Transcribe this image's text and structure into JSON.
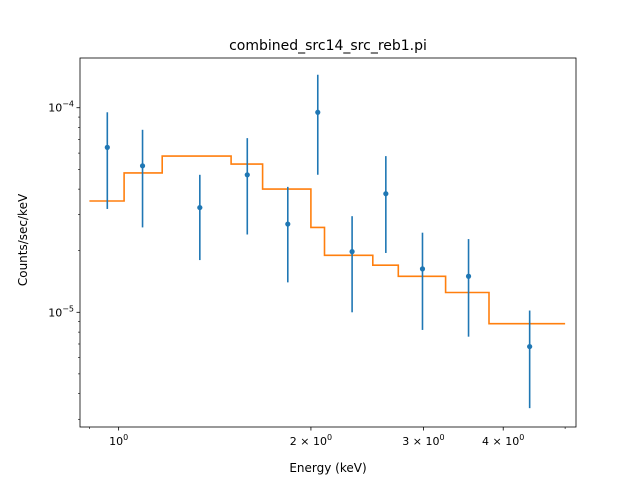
{
  "chart_data": {
    "type": "scatter",
    "title": "combined_src14_src_reb1.pi",
    "xlabel": "Energy (keV)",
    "ylabel": "Counts/sec/keV",
    "xscale": "log",
    "yscale": "log",
    "xlim": [
      0.87,
      5.2
    ],
    "ylim": [
      2.75e-06,
      0.000175
    ],
    "x_tick_labels": [
      {
        "value": 1,
        "base": "10",
        "exp": "0"
      },
      {
        "value": 2,
        "coeff": "2",
        "base": "10",
        "exp": "0"
      },
      {
        "value": 3,
        "coeff": "3",
        "base": "10",
        "exp": "0"
      },
      {
        "value": 4,
        "coeff": "4",
        "base": "10",
        "exp": "0"
      }
    ],
    "y_tick_labels": [
      {
        "value": 1e-05,
        "base": "10",
        "exp": "−5"
      },
      {
        "value": 0.0001,
        "base": "10",
        "exp": "−4"
      }
    ],
    "colors": {
      "data": "#1f77b4",
      "model": "#ff7f0e"
    },
    "series": [
      {
        "kind": "data-with-errorbars",
        "points": [
          {
            "x": 0.96,
            "y": 6.4e-05,
            "ylo": 3.2e-05,
            "yhi": 9.5e-05
          },
          {
            "x": 1.09,
            "y": 5.2e-05,
            "ylo": 2.6e-05,
            "yhi": 7.8e-05
          },
          {
            "x": 1.34,
            "y": 3.25e-05,
            "ylo": 1.8e-05,
            "yhi": 4.7e-05
          },
          {
            "x": 1.59,
            "y": 4.7e-05,
            "ylo": 2.4e-05,
            "yhi": 7.1e-05
          },
          {
            "x": 1.84,
            "y": 2.7e-05,
            "ylo": 1.4e-05,
            "yhi": 4.1e-05
          },
          {
            "x": 2.05,
            "y": 9.5e-05,
            "ylo": 4.7e-05,
            "yhi": 0.000145
          },
          {
            "x": 2.32,
            "y": 1.98e-05,
            "ylo": 1e-05,
            "yhi": 2.95e-05
          },
          {
            "x": 2.62,
            "y": 3.8e-05,
            "ylo": 1.95e-05,
            "yhi": 5.8e-05
          },
          {
            "x": 2.99,
            "y": 1.63e-05,
            "ylo": 8.2e-06,
            "yhi": 2.45e-05
          },
          {
            "x": 3.53,
            "y": 1.5e-05,
            "ylo": 7.6e-06,
            "yhi": 2.28e-05
          },
          {
            "x": 4.4,
            "y": 6.8e-06,
            "ylo": 3.4e-06,
            "yhi": 1.02e-05
          }
        ]
      },
      {
        "kind": "model-step",
        "steps": [
          {
            "x0": 0.9,
            "x1": 1.02,
            "y": 3.5e-05
          },
          {
            "x0": 1.02,
            "x1": 1.17,
            "y": 4.8e-05
          },
          {
            "x0": 1.17,
            "x1": 1.5,
            "y": 5.8e-05
          },
          {
            "x0": 1.5,
            "x1": 1.68,
            "y": 5.3e-05
          },
          {
            "x0": 1.68,
            "x1": 2.0,
            "y": 4e-05
          },
          {
            "x0": 2.0,
            "x1": 2.1,
            "y": 2.6e-05
          },
          {
            "x0": 2.1,
            "x1": 2.5,
            "y": 1.9e-05
          },
          {
            "x0": 2.5,
            "x1": 2.74,
            "y": 1.7e-05
          },
          {
            "x0": 2.74,
            "x1": 3.25,
            "y": 1.5e-05
          },
          {
            "x0": 3.25,
            "x1": 3.8,
            "y": 1.25e-05
          },
          {
            "x0": 3.8,
            "x1": 5.0,
            "y": 8.8e-06
          }
        ]
      }
    ]
  }
}
